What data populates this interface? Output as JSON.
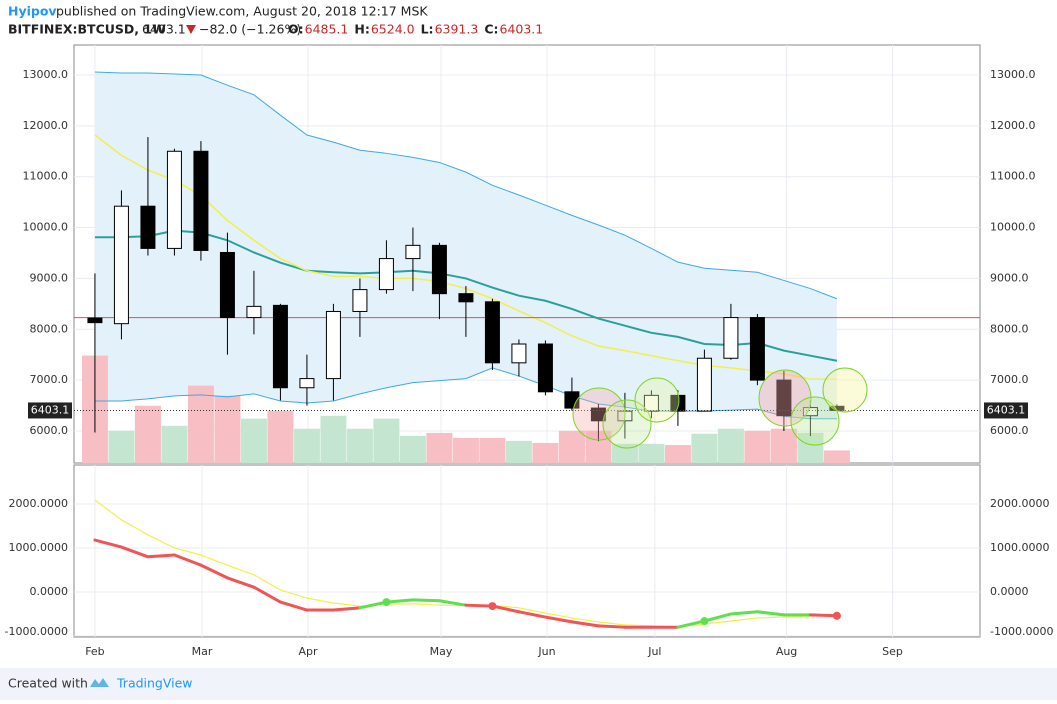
{
  "header": {
    "author": "Hyipov",
    "published": "published on TradingView.com, August 20, 2018 12:17 MSK",
    "symbol": "BITFINEX:BTCUSD, 1W",
    "last": "6403.1",
    "change": "−82.0 (−1.26%)",
    "ohlc": [
      {
        "label": "O:",
        "value": "6485.1"
      },
      {
        "label": "H:",
        "value": "6524.0"
      },
      {
        "label": "L:",
        "value": "6391.3"
      },
      {
        "label": "C:",
        "value": "6403.1"
      }
    ]
  },
  "footer": {
    "created": "Created with",
    "brand": "TradingView"
  },
  "chart_data": {
    "type": "candlestick",
    "xlim": [
      -0.79,
      33.4
    ],
    "xticks": [
      {
        "value": 0,
        "label": "Feb"
      },
      {
        "value": 4.04,
        "label": "Mar"
      },
      {
        "value": 8.04,
        "label": "Apr"
      },
      {
        "value": 13.06,
        "label": "May"
      },
      {
        "value": 17.06,
        "label": "Jun"
      },
      {
        "value": 21.13,
        "label": "Jul"
      },
      {
        "value": 26.1,
        "label": "Aug"
      },
      {
        "value": 30.1,
        "label": "Sep"
      }
    ],
    "ylim": [
      5370,
      13590
    ],
    "yticks": [
      {
        "value": 6000,
        "label": "6000.0"
      },
      {
        "value": 7000,
        "label": "7000.0"
      },
      {
        "value": 8000,
        "label": "8000.0"
      },
      {
        "value": 9000,
        "label": "9000.0"
      },
      {
        "value": 10000,
        "label": "10000.0"
      },
      {
        "value": 11000,
        "label": "11000.0"
      },
      {
        "value": 12000,
        "label": "12000.0"
      },
      {
        "value": 13000,
        "label": "13000.0"
      }
    ],
    "grid": true,
    "open": [
      8220,
      8110,
      10420,
      9590,
      11500,
      9510,
      8230,
      8470,
      6850,
      7030,
      8350,
      8780,
      9390,
      9650,
      8700,
      8540,
      7340,
      7710,
      6770,
      6450,
      6200,
      6390,
      6700,
      6390,
      7430,
      8230,
      7000,
      6300,
      6485.1
    ],
    "high": [
      9100,
      10730,
      11780,
      11550,
      11700,
      9900,
      9150,
      8500,
      7500,
      8500,
      9000,
      9750,
      10000,
      9700,
      8850,
      8600,
      7800,
      7780,
      7050,
      6530,
      6750,
      6800,
      6800,
      7600,
      8500,
      8300,
      7180,
      6600,
      6524
    ],
    "low": [
      5970,
      7800,
      9450,
      9450,
      9350,
      7500,
      7900,
      6600,
      6500,
      6600,
      7850,
      8700,
      8750,
      8200,
      7850,
      7200,
      7070,
      6700,
      6400,
      5800,
      5850,
      6250,
      6100,
      6450,
      7400,
      6900,
      6000,
      5900,
      6391.3
    ],
    "close": [
      8130,
      10420,
      9590,
      11500,
      9550,
      8230,
      8450,
      6850,
      7030,
      8350,
      8780,
      9390,
      9650,
      8700,
      8540,
      7340,
      7710,
      6770,
      6450,
      6200,
      6390,
      6700,
      6390,
      7430,
      8230,
      7000,
      6300,
      6460,
      6403.1
    ],
    "up_color": "#ffffff",
    "down_color": "#000000",
    "volume": [
      25.7,
      7.7,
      13.7,
      8.9,
      18.5,
      16.1,
      10.6,
      12.5,
      8.2,
      11.3,
      8.2,
      10.6,
      6.5,
      7.2,
      6.0,
      6.0,
      5.3,
      4.8,
      7.7,
      7.7,
      4.6,
      4.6,
      4.3,
      7.0,
      8.2,
      7.7,
      8.2,
      7.2,
      3.0
    ],
    "volume_lim": [
      0,
      100
    ],
    "volume_up_color": "#c4e6d0",
    "volume_down_color": "#f7bfc3",
    "bands": {
      "upper": [
        13060,
        13040,
        13040,
        13020,
        13000,
        12800,
        12610,
        12210,
        11820,
        11680,
        11520,
        11460,
        11380,
        11280,
        11090,
        10830,
        10640,
        10440,
        10240,
        10050,
        9850,
        9590,
        9320,
        9200,
        9160,
        9120,
        8960,
        8800,
        8600
      ],
      "middle": [
        9810,
        9810,
        9830,
        9940,
        9900,
        9750,
        9510,
        9310,
        9150,
        9120,
        9100,
        9120,
        9150,
        9100,
        9000,
        8820,
        8660,
        8560,
        8400,
        8210,
        8070,
        7930,
        7850,
        7710,
        7690,
        7730,
        7580,
        7480,
        7380
      ],
      "lower": [
        6590,
        6590,
        6630,
        6690,
        6710,
        6670,
        6730,
        6590,
        6550,
        6590,
        6730,
        6850,
        6950,
        6990,
        7030,
        7240,
        7080,
        6890,
        6690,
        6530,
        6470,
        6390,
        6390,
        6390,
        6410,
        6430,
        6290,
        6240,
        6240
      ],
      "upper_color": "#3fa9e0",
      "middle_color": "#2aa198",
      "lower_color": "#3fa9e0",
      "fill": "#e3f1fb"
    },
    "ma": [
      11820,
      11420,
      11130,
      10930,
      10630,
      10140,
      9750,
      9390,
      9150,
      9040,
      9040,
      9000,
      9000,
      8940,
      8800,
      8600,
      8360,
      8130,
      7870,
      7670,
      7580,
      7480,
      7380,
      7290,
      7240,
      7180,
      7120,
      7020,
      7020
    ],
    "ma_color": "#f2ef4a",
    "hline": 8230,
    "hline_color": "#e05050",
    "indicator": {
      "ylim": [
        -1023,
        2886
      ],
      "yticks": [
        {
          "value": -1000,
          "label": "-1000.0000"
        },
        {
          "value": 0,
          "label": "0.0000"
        },
        {
          "value": 1000,
          "label": "1000.0000"
        },
        {
          "value": 2000,
          "label": "2000.0000"
        }
      ],
      "main": [
        1180,
        1020,
        800,
        840,
        610,
        320,
        110,
        -230,
        -410,
        -410,
        -360,
        -230,
        -180,
        -200,
        -300,
        -320,
        -450,
        -570,
        -680,
        -770,
        -800,
        -800,
        -800,
        -660,
        -500,
        -450,
        -520,
        -520,
        -540
      ],
      "signal": [
        2090,
        1640,
        1300,
        1000,
        840,
        610,
        390,
        45,
        -140,
        -250,
        -320,
        -270,
        -270,
        -300,
        -310,
        -300,
        -360,
        -480,
        -590,
        -680,
        -750,
        -770,
        -790,
        -730,
        -660,
        -590,
        -570,
        -550,
        -520
      ],
      "above_color": "#5ee04c",
      "below_color": "#f05454",
      "signal_color": "#f2ef4a"
    }
  }
}
